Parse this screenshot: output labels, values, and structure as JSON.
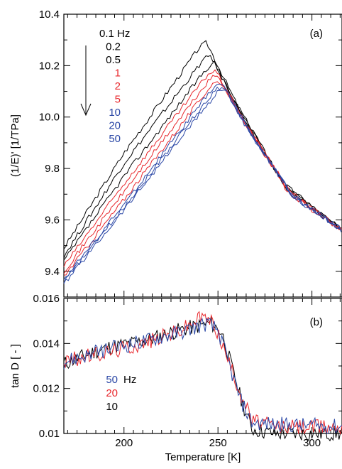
{
  "chart_data": [
    {
      "panel_label": "(a)",
      "type": "line",
      "ylabel": "(1/E)' [1/TPa]",
      "xlim": [
        168,
        316
      ],
      "ylim": [
        9.3,
        10.4
      ],
      "yticks": [
        {
          "v": 9.4,
          "label": "9.4"
        },
        {
          "v": 9.6,
          "label": "9.6"
        },
        {
          "v": 9.8,
          "label": "9.8"
        },
        {
          "v": 10.0,
          "label": "10.0"
        },
        {
          "v": 10.2,
          "label": "10.2"
        },
        {
          "v": 10.4,
          "label": "10.4"
        }
      ],
      "legend": [
        {
          "label": "0.1 Hz",
          "color": "#000000"
        },
        {
          "label": "0.2",
          "color": "#000000"
        },
        {
          "label": "0.5",
          "color": "#000000"
        },
        {
          "label": "1",
          "color": "#e8262b"
        },
        {
          "label": "2",
          "color": "#e8262b"
        },
        {
          "label": "5",
          "color": "#e8262b"
        },
        {
          "label": "10",
          "color": "#2a47a6"
        },
        {
          "label": "20",
          "color": "#2a47a6"
        },
        {
          "label": "50",
          "color": "#2a47a6"
        }
      ],
      "series": [
        {
          "color": "#000000",
          "x": [
            168,
            200,
            240,
            244,
            260,
            285,
            316
          ],
          "y": [
            9.49,
            9.86,
            10.27,
            10.29,
            10.05,
            9.74,
            9.56
          ]
        },
        {
          "color": "#000000",
          "x": [
            168,
            200,
            242,
            246,
            262,
            286,
            316
          ],
          "y": [
            9.46,
            9.82,
            10.22,
            10.24,
            10.02,
            9.73,
            9.56
          ]
        },
        {
          "color": "#000000",
          "x": [
            168,
            200,
            244,
            248,
            263,
            287,
            316
          ],
          "y": [
            9.44,
            9.77,
            10.19,
            10.21,
            10.0,
            9.72,
            9.56
          ]
        },
        {
          "color": "#e8262b",
          "x": [
            168,
            200,
            245,
            249,
            264,
            288,
            316
          ],
          "y": [
            9.42,
            9.74,
            10.17,
            10.18,
            9.98,
            9.71,
            9.56
          ]
        },
        {
          "color": "#e8262b",
          "x": [
            168,
            200,
            246,
            250,
            265,
            288,
            316
          ],
          "y": [
            9.4,
            9.71,
            10.15,
            10.16,
            9.97,
            9.7,
            9.56
          ]
        },
        {
          "color": "#e8262b",
          "x": [
            168,
            200,
            247,
            251,
            266,
            289,
            316
          ],
          "y": [
            9.38,
            9.68,
            10.13,
            10.14,
            9.96,
            9.7,
            9.56
          ]
        },
        {
          "color": "#2a47a6",
          "x": [
            168,
            200,
            248,
            252,
            266,
            289,
            316
          ],
          "y": [
            9.37,
            9.66,
            10.12,
            10.13,
            9.95,
            9.7,
            9.56
          ]
        },
        {
          "color": "#2a47a6",
          "x": [
            168,
            200,
            249,
            253,
            267,
            290,
            316
          ],
          "y": [
            9.36,
            9.65,
            10.11,
            10.12,
            9.94,
            9.69,
            9.56
          ]
        },
        {
          "color": "#2a47a6",
          "x": [
            168,
            200,
            250,
            254,
            267,
            290,
            316
          ],
          "y": [
            9.35,
            9.64,
            10.1,
            10.11,
            9.94,
            9.69,
            9.56
          ]
        }
      ]
    },
    {
      "panel_label": "(b)",
      "type": "line",
      "ylabel": "tan D [ - ]",
      "xlabel": "Temperature [K]",
      "xlim": [
        168,
        316
      ],
      "ylim": [
        0.01,
        0.016
      ],
      "xticks": [
        {
          "v": 200,
          "label": "200"
        },
        {
          "v": 250,
          "label": "250"
        },
        {
          "v": 300,
          "label": "300"
        }
      ],
      "yticks": [
        {
          "v": 0.01,
          "label": "0.01"
        },
        {
          "v": 0.012,
          "label": "0.012"
        },
        {
          "v": 0.014,
          "label": "0.014"
        },
        {
          "v": 0.016,
          "label": "0.016"
        }
      ],
      "legend": [
        {
          "label": "50",
          "color": "#2a47a6",
          "unit": "Hz"
        },
        {
          "label": "20",
          "color": "#e8262b"
        },
        {
          "label": "10",
          "color": "#000000"
        }
      ],
      "series": [
        {
          "color": "#000000",
          "x": [
            168,
            190,
            210,
            230,
            246,
            252,
            262,
            268,
            280,
            316
          ],
          "y": [
            0.0131,
            0.0138,
            0.0141,
            0.0146,
            0.0149,
            0.0145,
            0.0116,
            0.0102,
            0.01,
            0.01
          ]
        },
        {
          "color": "#e8262b",
          "x": [
            168,
            190,
            210,
            230,
            242,
            248,
            262,
            268,
            280,
            316
          ],
          "y": [
            0.0132,
            0.0136,
            0.014,
            0.0146,
            0.0152,
            0.0149,
            0.0118,
            0.0106,
            0.0103,
            0.0103
          ]
        },
        {
          "color": "#2a47a6",
          "x": [
            168,
            190,
            210,
            230,
            244,
            250,
            262,
            268,
            280,
            316
          ],
          "y": [
            0.0132,
            0.0137,
            0.0141,
            0.0145,
            0.0149,
            0.0146,
            0.0115,
            0.0105,
            0.0104,
            0.0103
          ]
        }
      ]
    }
  ]
}
